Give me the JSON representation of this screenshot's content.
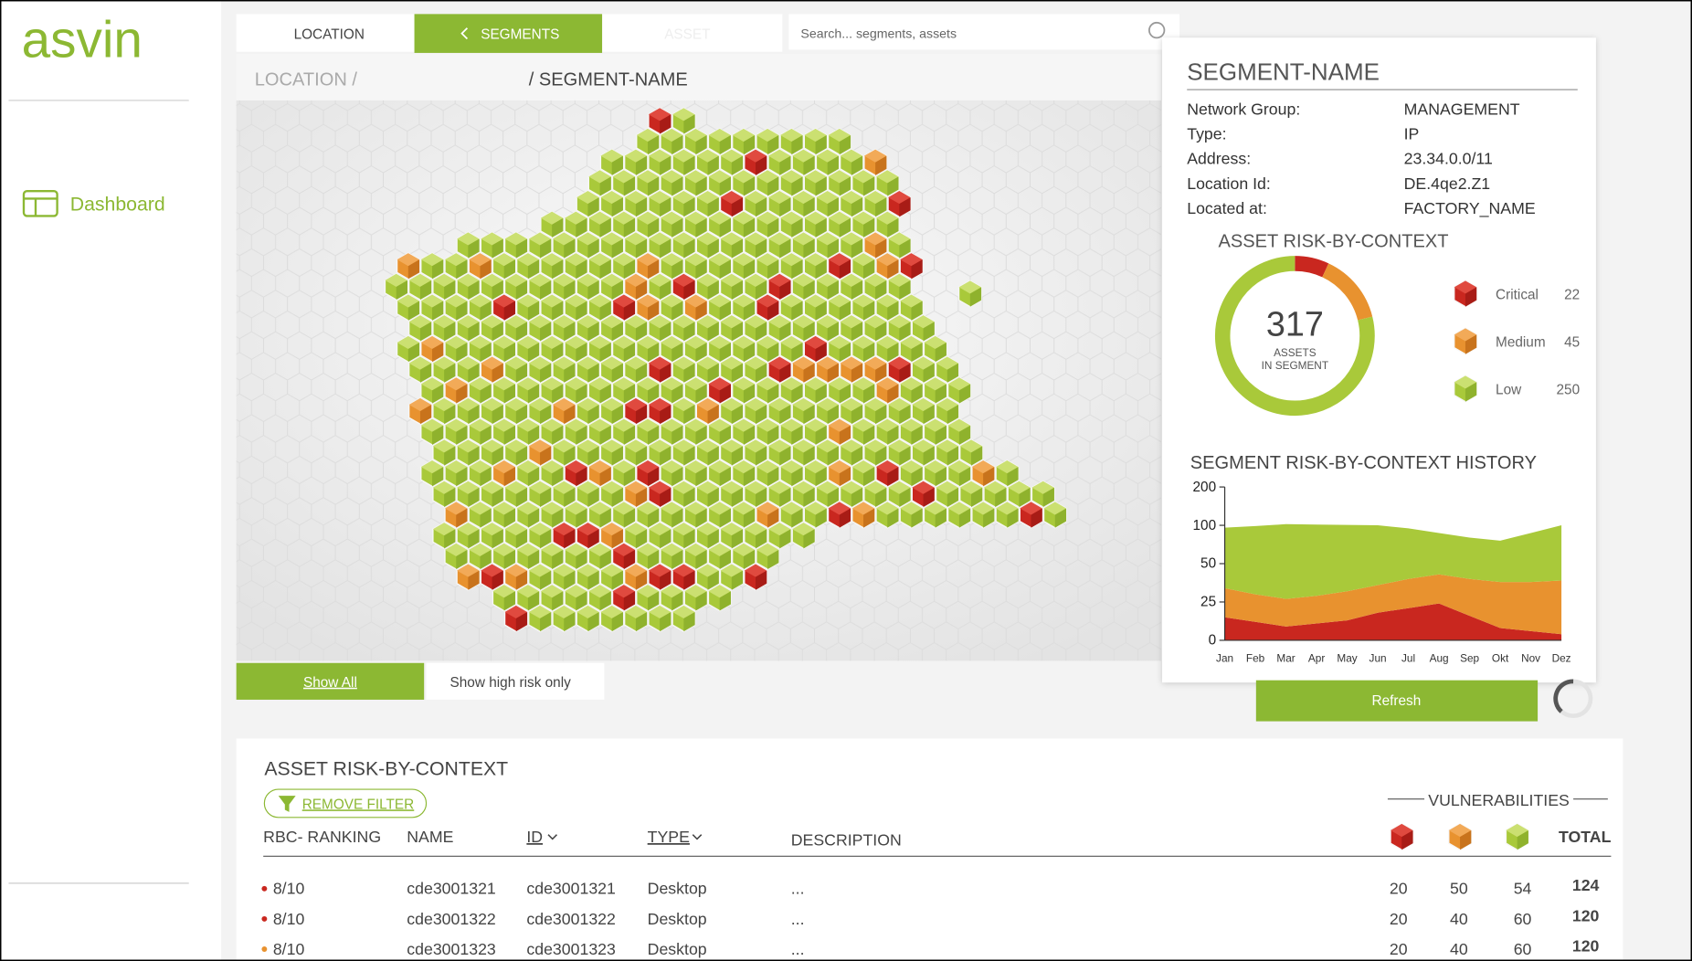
{
  "logo": "asvin",
  "nav": {
    "dashboard": "Dashboard"
  },
  "tabs": [
    "LOCATION",
    "SEGMENTS",
    "ASSET"
  ],
  "search_placeholder": "Search... segments, assets",
  "breadcrumb": [
    "LOCATION /",
    "/ SEGMENT-NAME"
  ],
  "map_buttons": [
    "Show All",
    "Show high risk only"
  ],
  "segment": {
    "title": "SEGMENT-NAME",
    "fields": [
      {
        "label": "Network Group:",
        "value": "MANAGEMENT"
      },
      {
        "label": "Type:",
        "value": "IP"
      },
      {
        "label": "Address:",
        "value": "23.34.0.0/11"
      },
      {
        "label": "Location Id:",
        "value": "DE.4qe2.Z1"
      },
      {
        "label": "Located at:",
        "value": "FACTORY_NAME"
      }
    ]
  },
  "refresh": "Refresh",
  "chart_data": [
    {
      "type": "pie",
      "donut": true,
      "title": "ASSET RISK-BY-CONTEXT",
      "categories": [
        "Critical",
        "Medium",
        "Low"
      ],
      "values": [
        22,
        45,
        250
      ],
      "colors": [
        "#c9271f",
        "#e8922f",
        "#a9c93a"
      ],
      "center_value": 317,
      "center_label": [
        "ASSETS",
        "IN SEGMENT"
      ]
    },
    {
      "type": "area",
      "stacked": true,
      "title": "SEGMENT RISK-BY-CONTEXT HISTORY",
      "categories": [
        "Jan",
        "Feb",
        "Mar",
        "Apr",
        "May",
        "Jun",
        "Jul",
        "Aug",
        "Sep",
        "Okt",
        "Nov",
        "Dez"
      ],
      "series": [
        {
          "color": "#c9271f",
          "values": [
            15,
            12,
            9,
            11,
            13,
            18,
            21,
            24,
            16,
            8,
            6,
            4
          ]
        },
        {
          "color": "#e8922f",
          "values": [
            19,
            18,
            18,
            18,
            19,
            18,
            19,
            19,
            24,
            30,
            32,
            35
          ]
        },
        {
          "color": "#a9c93a",
          "values": [
            63,
            69,
            76,
            73,
            69,
            64,
            56,
            47,
            44,
            42,
            52,
            61
          ]
        }
      ],
      "ylim": [
        0,
        200
      ],
      "yticks": [
        0,
        25,
        50,
        100,
        200
      ]
    }
  ],
  "table": {
    "title": "ASSET RISK-BY-CONTEXT",
    "filter": "REMOVE FILTER",
    "vulnerabilities": "VULNERABILITIES",
    "columns": [
      "RBC- RANKING",
      "NAME",
      "ID",
      "TYPE",
      "DESCRIPTION",
      "TOTAL"
    ],
    "rows": [
      {
        "color": "#c9271f",
        "rbc": "8/10",
        "name": "cde3001321",
        "id": "cde3001321",
        "type": "Desktop",
        "description": "...",
        "critical": 20,
        "medium": 50,
        "low": 54,
        "total": 124
      },
      {
        "color": "#c9271f",
        "rbc": "8/10",
        "name": "cde3001322",
        "id": "cde3001322",
        "type": "Desktop",
        "description": "...",
        "critical": 20,
        "medium": 40,
        "low": 60,
        "total": 120
      },
      {
        "color": "#e8922f",
        "rbc": "8/10",
        "name": "cde3001323",
        "id": "cde3001323",
        "type": "Desktop",
        "description": "...",
        "critical": 20,
        "medium": 40,
        "low": 60,
        "total": 120
      }
    ]
  }
}
